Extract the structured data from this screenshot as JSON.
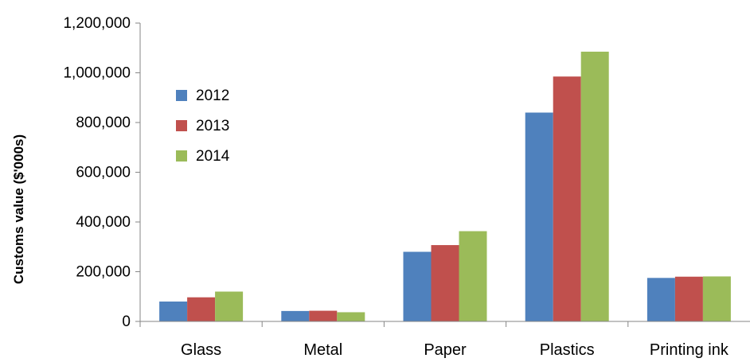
{
  "chart_data": {
    "type": "bar",
    "title": "",
    "xlabel": "",
    "ylabel": "Customs value ($'000s)",
    "ylim": [
      0,
      1200000
    ],
    "yticks": [
      0,
      200000,
      400000,
      600000,
      800000,
      1000000,
      1200000
    ],
    "ytick_labels": [
      "0",
      "200,000",
      "400,000",
      "600,000",
      "800,000",
      "1,000,000",
      "1,200,000"
    ],
    "categories": [
      "Glass",
      "Metal",
      "Paper",
      "Plastics",
      "Printing ink"
    ],
    "series": [
      {
        "name": "2012",
        "color": "#4f81bd",
        "values": [
          80000,
          42000,
          280000,
          840000,
          175000
        ]
      },
      {
        "name": "2013",
        "color": "#c0504d",
        "values": [
          97000,
          43000,
          307000,
          985000,
          180000
        ]
      },
      {
        "name": "2014",
        "color": "#9bbb59",
        "values": [
          120000,
          37000,
          363000,
          1085000,
          181000
        ]
      }
    ],
    "grid": false,
    "legend_position": "top-left"
  }
}
